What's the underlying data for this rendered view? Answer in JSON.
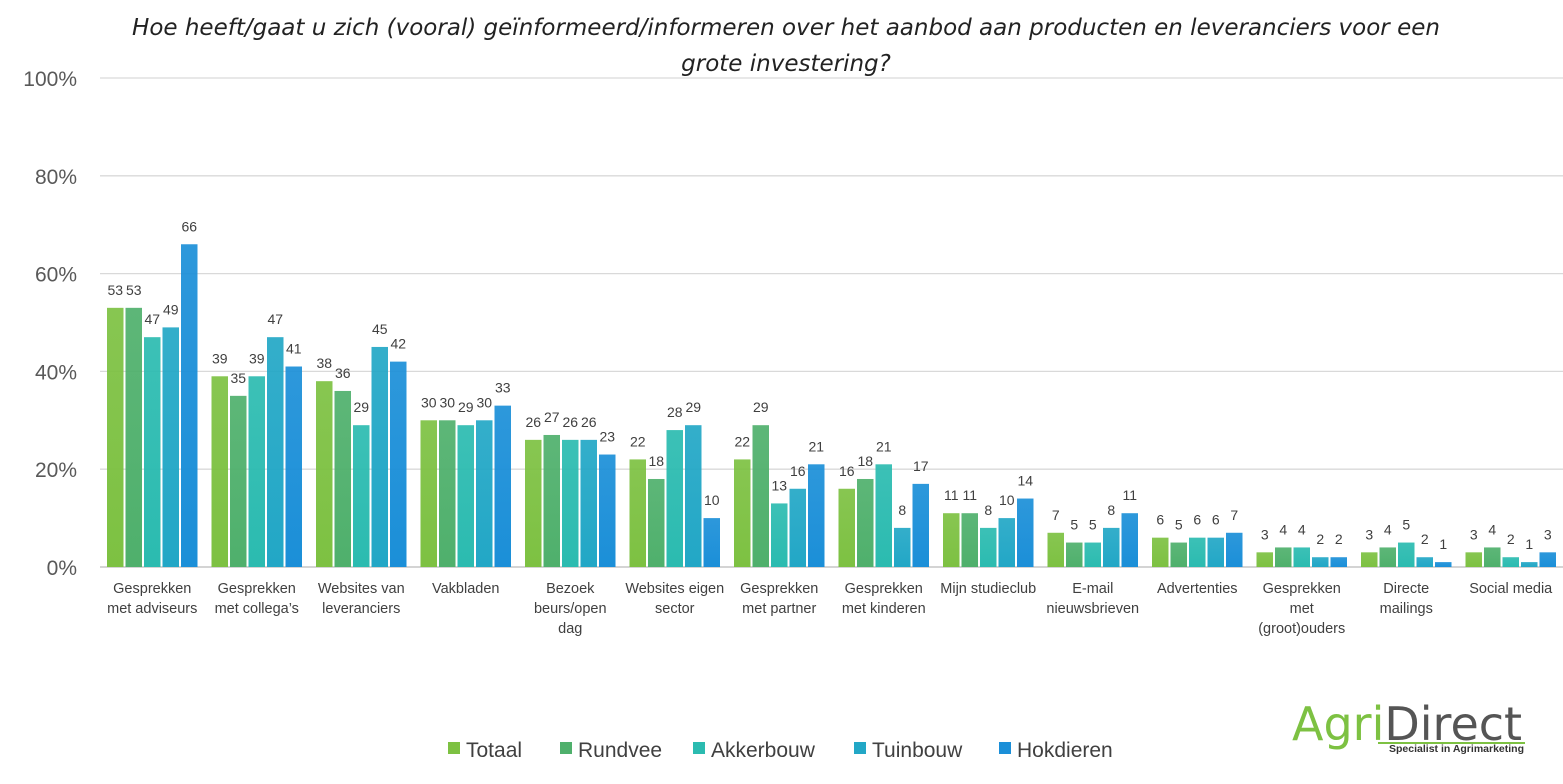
{
  "chart_data": {
    "type": "bar",
    "title": "Hoe heeft/gaat u zich (vooral) geïnformeerd/informeren over het aanbod aan producten en leveranciers voor een grote investering?",
    "title_lines": [
      "Hoe heeft/gaat u zich (vooral) geïnformeerd/informeren over het aanbod aan producten en leveranciers voor een",
      "grote investering?"
    ],
    "ylim": [
      0,
      100
    ],
    "y_ticks": [
      "0%",
      "20%",
      "40%",
      "60%",
      "80%",
      "100%"
    ],
    "grid": true,
    "legend_position": "bottom",
    "categories": [
      [
        "Gesprekken",
        "met adviseurs"
      ],
      [
        "Gesprekken",
        "met collega’s"
      ],
      [
        "Websites van",
        "leveranciers"
      ],
      [
        "Vakbladen"
      ],
      [
        "Bezoek",
        "beurs/open",
        "dag"
      ],
      [
        "Websites eigen",
        "sector"
      ],
      [
        "Gesprekken",
        "met partner"
      ],
      [
        "Gesprekken",
        "met kinderen"
      ],
      [
        "Mijn studieclub"
      ],
      [
        "E-mail",
        "nieuwsbrieven"
      ],
      [
        "Advertenties"
      ],
      [
        "Gesprekken",
        "met",
        "(groot)ouders"
      ],
      [
        "Directe",
        "mailings"
      ],
      [
        "Social media"
      ]
    ],
    "series": [
      {
        "name": "Totaal",
        "color": "#7dc142",
        "values": [
          53,
          39,
          38,
          30,
          26,
          22,
          22,
          16,
          11,
          7,
          6,
          3,
          3,
          3
        ]
      },
      {
        "name": "Rundvee",
        "color": "#4fb06c",
        "values": [
          53,
          35,
          36,
          30,
          27,
          18,
          29,
          18,
          11,
          5,
          5,
          4,
          4,
          4
        ]
      },
      {
        "name": "Akkerbouw",
        "color": "#2bbbb0",
        "values": [
          47,
          39,
          29,
          29,
          26,
          28,
          13,
          21,
          8,
          5,
          6,
          4,
          5,
          2
        ]
      },
      {
        "name": "Tuinbouw",
        "color": "#22a7c6",
        "values": [
          49,
          47,
          45,
          30,
          26,
          29,
          16,
          8,
          10,
          8,
          6,
          2,
          2,
          1
        ]
      },
      {
        "name": "Hokdieren",
        "color": "#1b8fd8",
        "values": [
          66,
          41,
          42,
          33,
          23,
          10,
          21,
          17,
          14,
          11,
          7,
          2,
          1,
          3
        ]
      }
    ]
  },
  "logo": {
    "part1": "Agri",
    "part2": "Direct",
    "tagline": "Specialist in Agrimarketing",
    "color1": "#7dc142",
    "color2": "#555555"
  }
}
